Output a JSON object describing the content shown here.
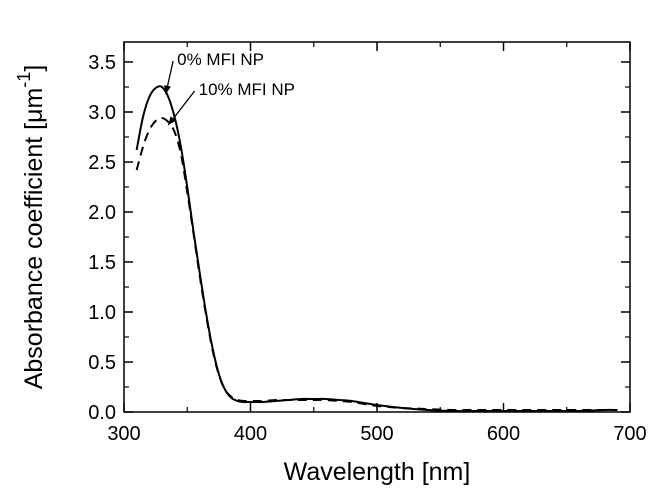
{
  "chart_data": {
    "type": "line",
    "xlabel": "Wavelength [nm]",
    "ylabel_main": "Absorbance coefficient [",
    "ylabel_unit": "μm",
    "ylabel_exp": "-1",
    "ylabel_close": "]",
    "xlim": [
      300,
      700
    ],
    "ylim": [
      0,
      3.7
    ],
    "xticks": [
      300,
      400,
      500,
      600,
      700
    ],
    "xtick_labels": [
      "300",
      "400",
      "500",
      "600",
      "700"
    ],
    "yticks": [
      0,
      0.5,
      1,
      1.5,
      2,
      2.5,
      3,
      3.5
    ],
    "ytick_labels": [
      "0.0",
      "0.5",
      "1.0",
      "1.5",
      "2.0",
      "2.5",
      "3.0",
      "3.5"
    ],
    "series": [
      {
        "name": "0% MFI NP",
        "style": "solid",
        "color": "#000000",
        "x": [
          310,
          315,
          320,
          325,
          330,
          335,
          340,
          345,
          350,
          355,
          360,
          365,
          370,
          375,
          380,
          385,
          390,
          395,
          400,
          405,
          410,
          420,
          430,
          440,
          450,
          460,
          470,
          480,
          490,
          500,
          520,
          540,
          560,
          580,
          600,
          620,
          640,
          660,
          680,
          690
        ],
        "y": [
          2.62,
          2.95,
          3.15,
          3.24,
          3.25,
          3.15,
          2.95,
          2.65,
          2.25,
          1.8,
          1.38,
          0.98,
          0.64,
          0.38,
          0.22,
          0.14,
          0.11,
          0.1,
          0.1,
          0.1,
          0.1,
          0.11,
          0.12,
          0.13,
          0.13,
          0.13,
          0.12,
          0.11,
          0.09,
          0.07,
          0.04,
          0.02,
          0.01,
          0.01,
          0.01,
          0.01,
          0.01,
          0.01,
          0.02,
          0.02
        ]
      },
      {
        "name": "10% MFI NP",
        "style": "dashed",
        "color": "#000000",
        "x": [
          310,
          315,
          320,
          325,
          330,
          335,
          340,
          345,
          350,
          355,
          360,
          365,
          370,
          375,
          380,
          385,
          390,
          395,
          400,
          405,
          410,
          420,
          430,
          440,
          450,
          460,
          470,
          480,
          490,
          500,
          520,
          540,
          560,
          580,
          600,
          620,
          640,
          660,
          680,
          690
        ],
        "y": [
          2.42,
          2.65,
          2.82,
          2.91,
          2.94,
          2.9,
          2.8,
          2.58,
          2.2,
          1.78,
          1.35,
          0.96,
          0.62,
          0.37,
          0.22,
          0.15,
          0.12,
          0.11,
          0.11,
          0.11,
          0.11,
          0.12,
          0.12,
          0.12,
          0.12,
          0.12,
          0.11,
          0.1,
          0.08,
          0.06,
          0.04,
          0.03,
          0.02,
          0.02,
          0.02,
          0.02,
          0.02,
          0.02,
          0.02,
          0.02
        ]
      }
    ],
    "annotations": [
      {
        "text": "0% MFI NP",
        "label_at": [
          342,
          3.47
        ],
        "arrow_to": [
          333,
          3.18
        ]
      },
      {
        "text": "10% MFI NP",
        "label_at": [
          359,
          3.17
        ],
        "arrow_to": [
          335,
          2.87
        ]
      }
    ],
    "grid": false,
    "legend": "none"
  }
}
